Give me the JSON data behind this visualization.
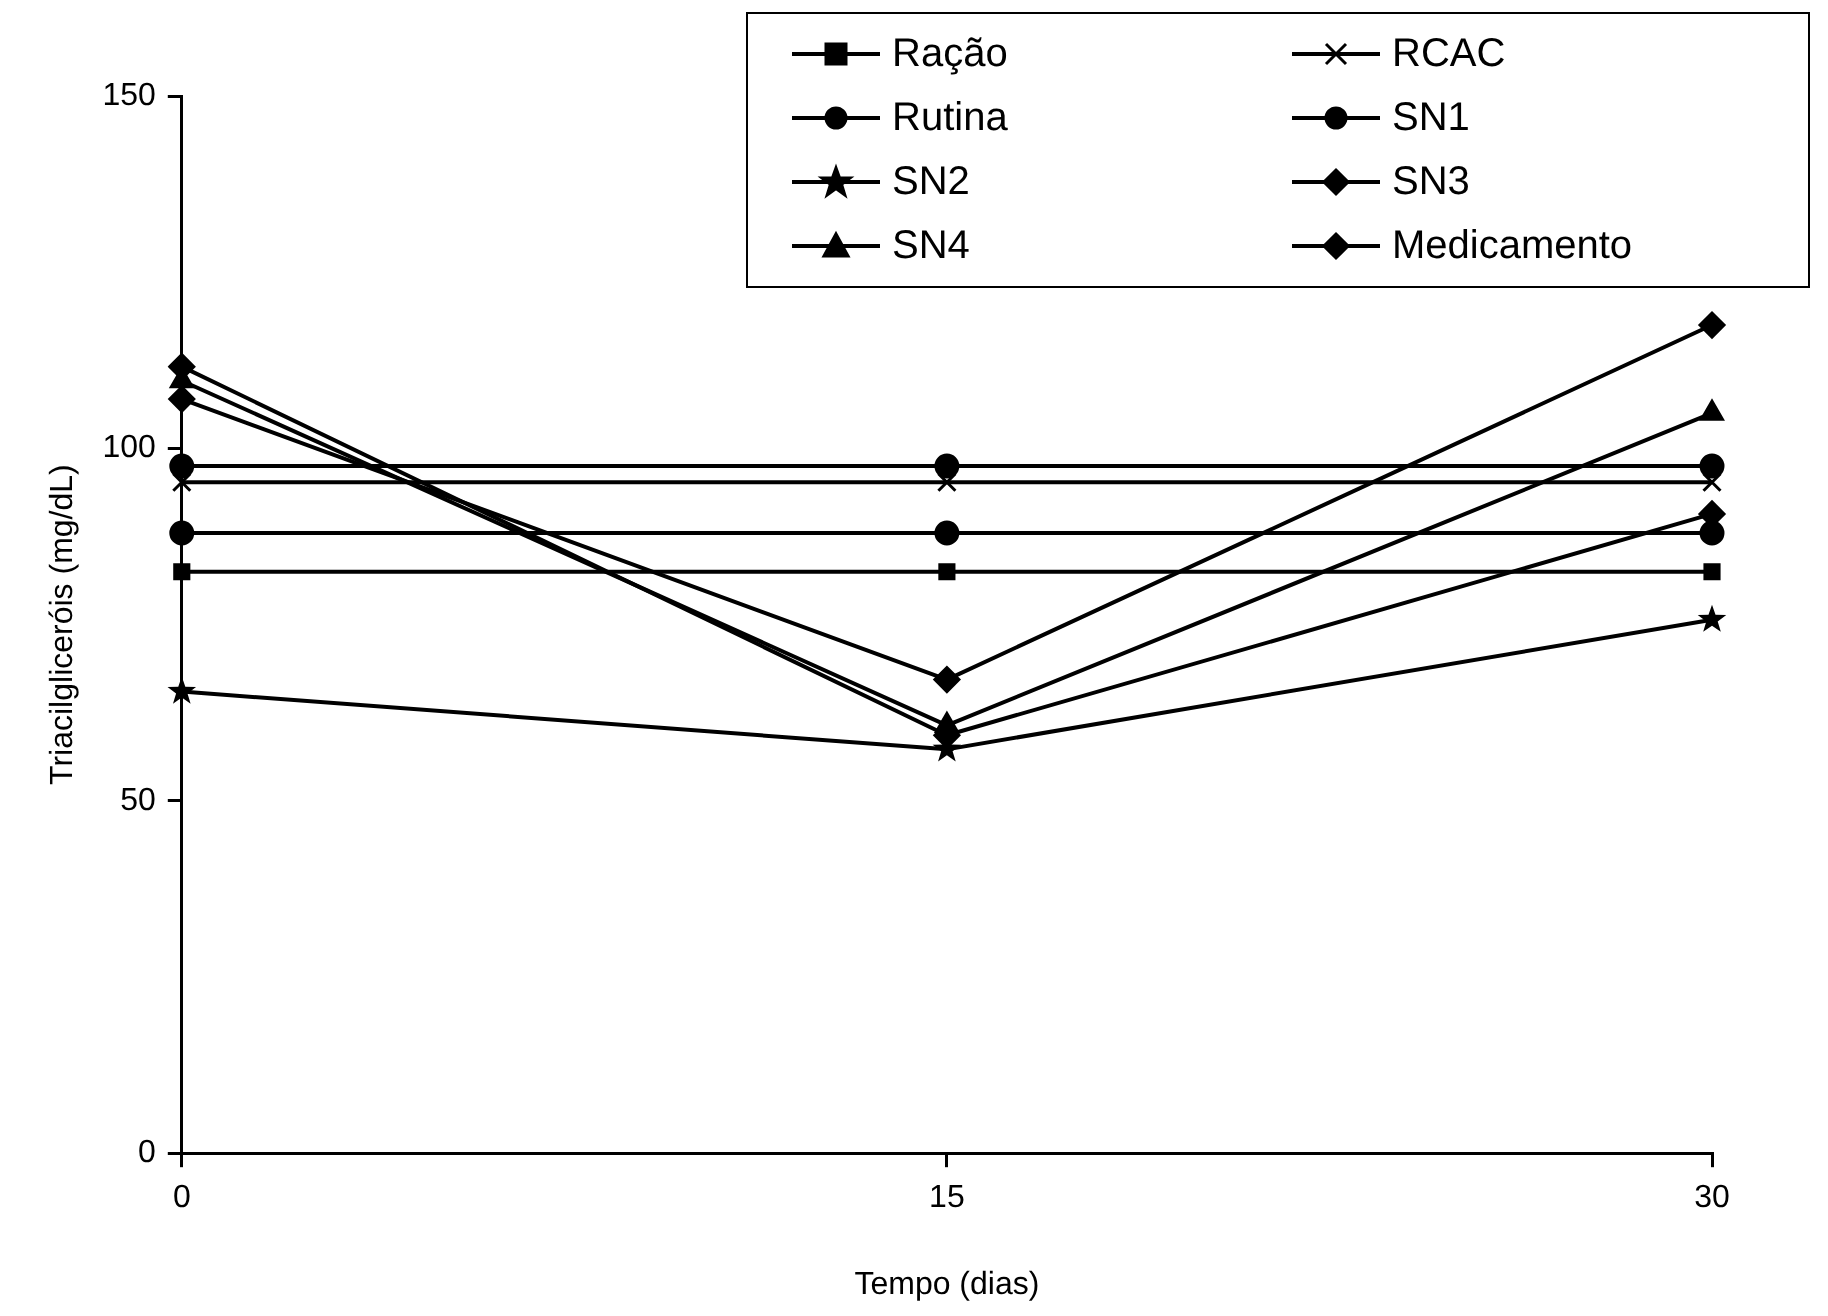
{
  "chart_data": {
    "type": "line",
    "xlabel": "Tempo (dias)",
    "ylabel": "Triacilgliceróis (mg/dL)",
    "x": [
      0,
      15,
      30
    ],
    "xlim": [
      0,
      30
    ],
    "xticks": [
      0,
      15,
      30
    ],
    "ylim": [
      0,
      150
    ],
    "yticks": [
      0,
      50,
      100,
      150
    ],
    "grid": false,
    "legend": "top right",
    "line_style": "solid",
    "series": [
      {
        "name": "Ração",
        "color": "#000000",
        "marker": "square",
        "values": [
          82.5,
          82.5,
          82.5
        ]
      },
      {
        "name": "RCAC",
        "color": "#000000",
        "marker": "cross",
        "values": [
          95.2,
          95.2,
          95.2
        ]
      },
      {
        "name": "Rutina",
        "color": "#000000",
        "marker": "circle",
        "values": [
          88,
          88,
          88
        ]
      },
      {
        "name": "SN1",
        "color": "#000000",
        "marker": "circle",
        "values": [
          97.5,
          97.5,
          97.5
        ]
      },
      {
        "name": "SN2",
        "color": "#000000",
        "marker": "star",
        "values": [
          65.5,
          57.3,
          75.7
        ]
      },
      {
        "name": "SN3",
        "color": "#000000",
        "marker": "diamond",
        "values": [
          107,
          67.2,
          117.5
        ]
      },
      {
        "name": "SN4",
        "color": "#000000",
        "marker": "triangle",
        "values": [
          109.6,
          60.7,
          105
        ]
      },
      {
        "name": "Medicamento",
        "color": "#000000",
        "marker": "diamond",
        "values": [
          111.6,
          59.3,
          90.7
        ]
      }
    ]
  }
}
